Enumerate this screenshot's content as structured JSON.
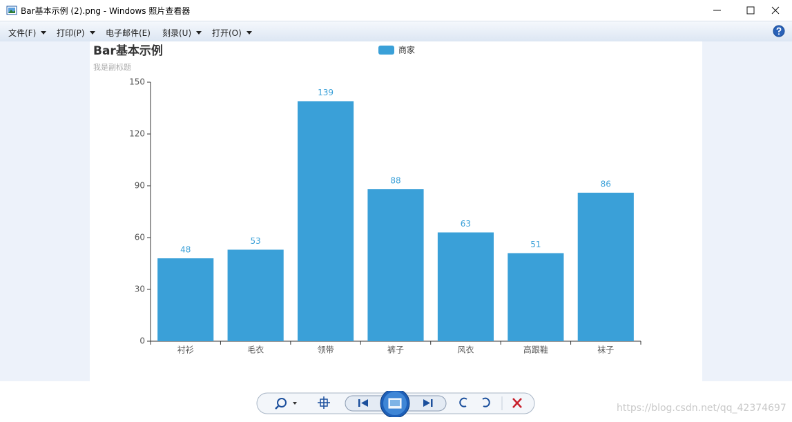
{
  "window": {
    "title": "Bar基本示例 (2).png - Windows 照片查看器"
  },
  "menu": [
    "文件(F)",
    "打印(P)",
    "电子邮件(E)",
    "刻录(U)",
    "打开(O)"
  ],
  "chart_data": {
    "type": "bar",
    "title": "Bar基本示例",
    "subtitle": "我是副标题",
    "categories": [
      "衬衫",
      "毛衣",
      "领带",
      "裤子",
      "风衣",
      "高跟鞋",
      "袜子"
    ],
    "series": [
      {
        "name": "商家",
        "color": "#3aa0d8",
        "values": [
          48,
          53,
          139,
          88,
          63,
          51,
          86
        ]
      }
    ],
    "ylim": [
      0,
      150
    ],
    "yticks": [
      0,
      30,
      60,
      90,
      120,
      150
    ],
    "grid": false,
    "legend": "top"
  },
  "watermark": "https://blog.csdn.net/qq_42374697"
}
